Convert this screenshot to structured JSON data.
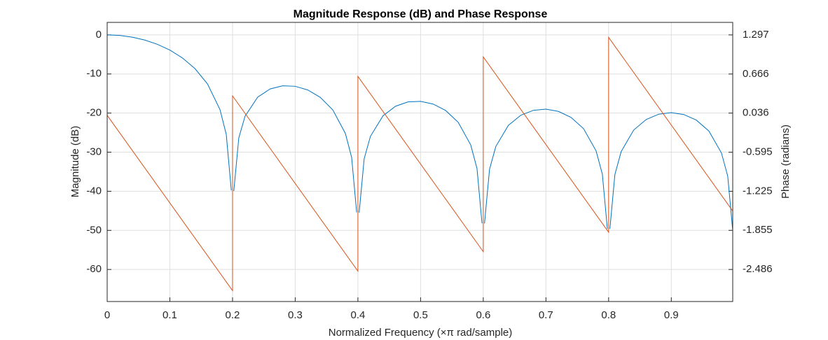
{
  "chart_data": {
    "type": "line",
    "title": "Magnitude Response (dB) and Phase Response",
    "x_label": "Normalized Frequency (×π rad/sample)",
    "y_label": "Magnitude (dB)",
    "y2_label": "Phase (radians)",
    "xlim": [
      0,
      0.998
    ],
    "xticks": [
      0,
      0.1,
      0.2,
      0.3,
      0.4,
      0.5,
      0.6,
      0.7,
      0.8,
      0.9
    ],
    "ylim": [
      -68.2,
      3.2
    ],
    "yticks": [
      -60,
      -50,
      -40,
      -30,
      -20,
      -10,
      0
    ],
    "y2lim": [
      -3.003,
      1.499
    ],
    "y2ticks": [
      -2.486,
      -1.855,
      -1.225,
      -0.595,
      0.036,
      0.666,
      1.297
    ],
    "grid": true,
    "series": [
      {
        "name": "Magnitude",
        "color": "#0072BD",
        "x": [
          0,
          0.02,
          0.04,
          0.06,
          0.08,
          0.1,
          0.12,
          0.14,
          0.16,
          0.18,
          0.19,
          0.198,
          0.2,
          0.202,
          0.21,
          0.22,
          0.24,
          0.26,
          0.28,
          0.3,
          0.32,
          0.34,
          0.36,
          0.38,
          0.39,
          0.398,
          0.4,
          0.402,
          0.41,
          0.42,
          0.44,
          0.46,
          0.48,
          0.5,
          0.52,
          0.54,
          0.56,
          0.58,
          0.59,
          0.598,
          0.6,
          0.602,
          0.61,
          0.62,
          0.64,
          0.66,
          0.68,
          0.7,
          0.72,
          0.74,
          0.76,
          0.78,
          0.79,
          0.798,
          0.8,
          0.802,
          0.81,
          0.82,
          0.84,
          0.86,
          0.88,
          0.9,
          0.92,
          0.94,
          0.96,
          0.98,
          0.99,
          0.998
        ],
        "values": [
          0,
          -0.142,
          -0.574,
          -1.313,
          -2.397,
          -3.887,
          -5.89,
          -8.616,
          -12.53,
          -19.11,
          -25.48,
          -39.77,
          null,
          -39.94,
          -26.32,
          -20.8,
          -15.94,
          -13.82,
          -13.02,
          -13.14,
          -14.09,
          -15.98,
          -19.2,
          -25.2,
          -31.31,
          -45.41,
          null,
          -45.48,
          -31.68,
          -25.95,
          -20.71,
          -18.25,
          -17.14,
          -16.99,
          -17.69,
          -19.34,
          -22.35,
          -28.15,
          -34.17,
          -48.2,
          null,
          -48.24,
          -34.37,
          -28.55,
          -23.15,
          -20.54,
          -19.29,
          -19.0,
          -19.57,
          -21.1,
          -23.98,
          -29.67,
          -35.63,
          -49.61,
          null,
          -49.63,
          -35.72,
          -29.85,
          -24.34,
          -21.63,
          -20.28,
          -19.89,
          -20.37,
          -21.8,
          -24.6,
          -30.2,
          -36.11,
          -50.06
        ]
      },
      {
        "name": "Phase",
        "color": "#D95319",
        "axis": "y2",
        "x": [
          0,
          0.2,
          0.2,
          0.4,
          0.4,
          0.6,
          0.6,
          0.8,
          0.8,
          0.998
        ],
        "values": [
          0,
          -2.827,
          0.314,
          -2.513,
          0.628,
          -2.199,
          0.942,
          -1.885,
          1.257,
          -1.543
        ]
      }
    ]
  }
}
